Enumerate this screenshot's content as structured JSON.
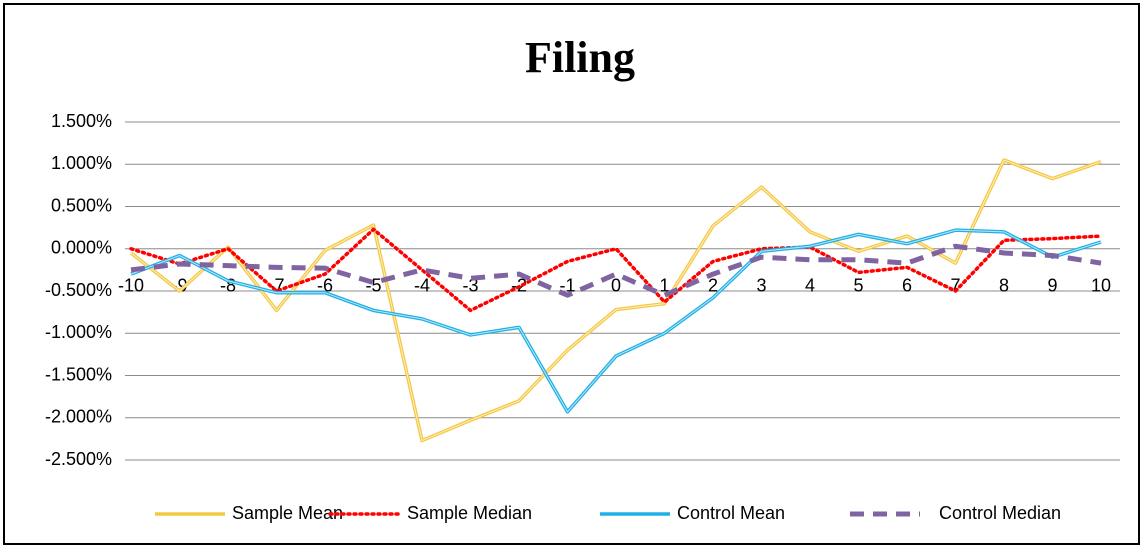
{
  "chart_data": {
    "type": "line",
    "title": "Filing",
    "categories": [
      "-10",
      "-9",
      "-8",
      "-7",
      "-6",
      "-5",
      "-4",
      "-3",
      "-2",
      "-1",
      "0",
      "1",
      "2",
      "3",
      "4",
      "5",
      "6",
      "7",
      "8",
      "9",
      "10"
    ],
    "series": [
      {
        "name": "Sample Mean",
        "color": "#f5c842",
        "style": "solid",
        "values": [
          -0.05,
          -0.5,
          0.02,
          -0.73,
          -0.02,
          0.28,
          -2.27,
          -2.03,
          -1.8,
          -1.2,
          -0.72,
          -0.65,
          0.27,
          0.73,
          0.2,
          -0.03,
          0.15,
          -0.17,
          1.05,
          0.83,
          1.03
        ]
      },
      {
        "name": "Sample Median",
        "color": "#ff0000",
        "style": "dotted",
        "values": [
          0.0,
          -0.18,
          0.0,
          -0.5,
          -0.3,
          0.23,
          -0.25,
          -0.73,
          -0.45,
          -0.15,
          0.0,
          -0.63,
          -0.15,
          0.0,
          0.02,
          -0.28,
          -0.22,
          -0.5,
          0.1,
          0.12,
          0.15
        ]
      },
      {
        "name": "Control Mean",
        "color": "#1fb0e6",
        "style": "solid",
        "values": [
          -0.3,
          -0.08,
          -0.38,
          -0.52,
          -0.52,
          -0.73,
          -0.83,
          -1.02,
          -0.93,
          -1.93,
          -1.27,
          -1.0,
          -0.58,
          -0.03,
          0.03,
          0.17,
          0.06,
          0.22,
          0.2,
          -0.1,
          0.08
        ]
      },
      {
        "name": "Control Median",
        "color": "#8064a2",
        "style": "dashed",
        "values": [
          -0.25,
          -0.18,
          -0.2,
          -0.22,
          -0.23,
          -0.4,
          -0.25,
          -0.35,
          -0.3,
          -0.55,
          -0.3,
          -0.55,
          -0.3,
          -0.1,
          -0.13,
          -0.13,
          -0.17,
          0.03,
          -0.05,
          -0.08,
          -0.17
        ]
      }
    ],
    "ylim": [
      -2.5,
      1.5
    ],
    "yticks": [
      {
        "value": -2.5,
        "label": "-2.500%"
      },
      {
        "value": -2.0,
        "label": "-2.000%"
      },
      {
        "value": -1.5,
        "label": "-1.500%"
      },
      {
        "value": -1.0,
        "label": "-1.000%"
      },
      {
        "value": -0.5,
        "label": "-0.500%"
      },
      {
        "value": 0,
        "label": "0.000%"
      },
      {
        "value": 0.5,
        "label": "0.500%"
      },
      {
        "value": 1.0,
        "label": "1.000%"
      },
      {
        "value": 1.5,
        "label": "1.500%"
      }
    ],
    "grid": true,
    "legend": "bottom"
  }
}
